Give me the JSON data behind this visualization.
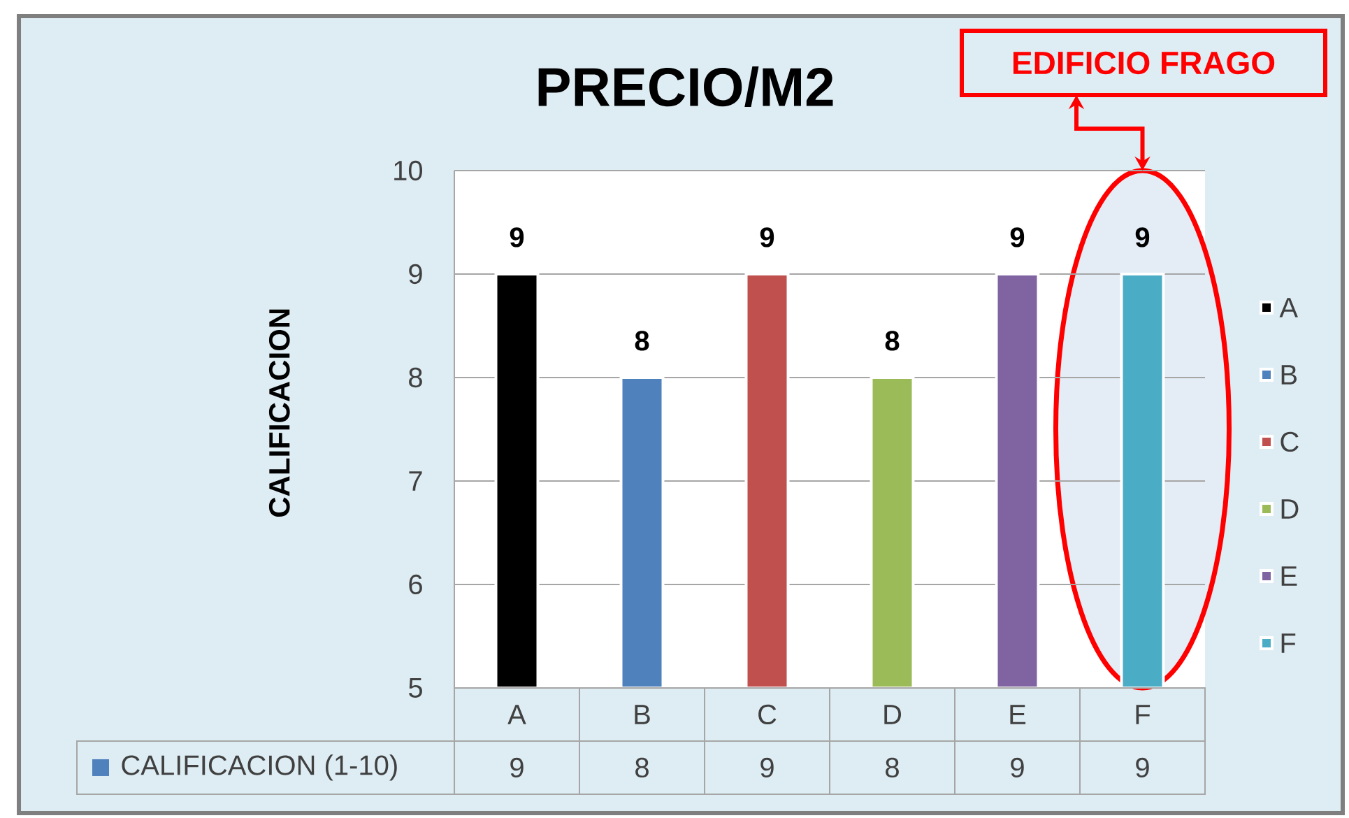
{
  "chart_data": {
    "type": "bar",
    "title": "PRECIO/M2",
    "ylabel": "CALIFICACION",
    "categories": [
      "A",
      "B",
      "C",
      "D",
      "E",
      "F"
    ],
    "series": [
      {
        "name": "CALIFICACION (1-10)",
        "color": "#4f81bd",
        "colors": [
          "#000000",
          "#4f81bd",
          "#c0504d",
          "#9bbb59",
          "#8064a2",
          "#4bacc6"
        ],
        "values": [
          9,
          8,
          9,
          8,
          9,
          9
        ]
      }
    ],
    "ylim": [
      5,
      10
    ],
    "yticks": [
      5,
      6,
      7,
      8,
      9,
      10
    ],
    "grid": "y",
    "legend": "bottom left",
    "data_labels": true,
    "annotations": [
      "EDIFICIO FRAGO",
      {
        "text": "9",
        "x": "A",
        "y": 9
      },
      {
        "text": "8",
        "x": "B",
        "y": 8
      },
      {
        "text": "9",
        "x": "C",
        "y": 9
      },
      {
        "text": "8",
        "x": "D",
        "y": 8
      },
      {
        "text": "9",
        "x": "E",
        "y": 9
      },
      {
        "text": "9",
        "x": "F",
        "y": 9
      }
    ]
  }
}
